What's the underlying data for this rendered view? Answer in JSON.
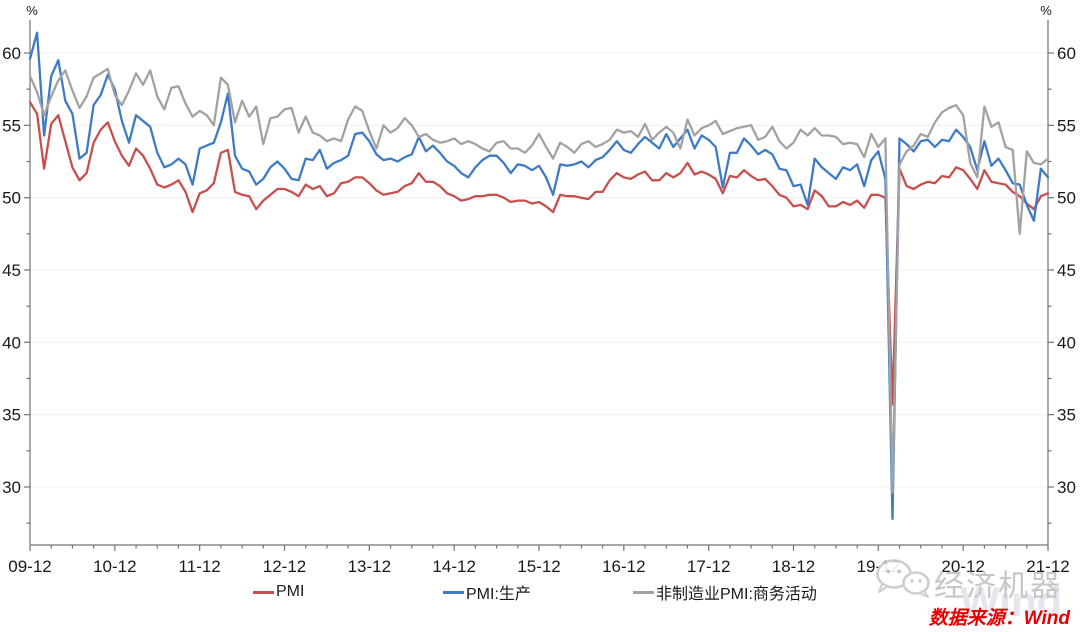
{
  "chart_data": {
    "type": "line",
    "title": "",
    "unit_left": "%",
    "unit_right": "%",
    "x_start": "2009-12",
    "x_frequency": "monthly",
    "x_tick_labels": [
      "09-12",
      "10-12",
      "11-12",
      "12-12",
      "13-12",
      "14-12",
      "15-12",
      "16-12",
      "17-12",
      "18-12",
      "19-12",
      "20-12",
      "21-12"
    ],
    "y_axis": {
      "min": 26,
      "max": 62.3,
      "major_ticks": [
        30,
        35,
        40,
        45,
        50,
        55,
        60
      ],
      "minor_step": 2.5,
      "grid": true
    },
    "legend_position": "bottom",
    "series": [
      {
        "name": "PMI",
        "color": "#C7504F",
        "values": [
          56.6,
          55.8,
          52.0,
          55.1,
          55.7,
          53.9,
          52.1,
          51.2,
          51.7,
          53.8,
          54.7,
          55.2,
          53.9,
          52.9,
          52.2,
          53.4,
          52.9,
          52.0,
          50.9,
          50.7,
          50.9,
          51.2,
          50.4,
          49.0,
          50.3,
          50.5,
          51.0,
          53.1,
          53.3,
          50.4,
          50.2,
          50.1,
          49.2,
          49.8,
          50.2,
          50.6,
          50.6,
          50.4,
          50.1,
          50.9,
          50.6,
          50.8,
          50.1,
          50.3,
          51.0,
          51.1,
          51.4,
          51.4,
          51.0,
          50.5,
          50.2,
          50.3,
          50.4,
          50.8,
          51.0,
          51.7,
          51.1,
          51.1,
          50.8,
          50.3,
          50.1,
          49.8,
          49.9,
          50.1,
          50.1,
          50.2,
          50.2,
          50.0,
          49.7,
          49.8,
          49.8,
          49.6,
          49.7,
          49.4,
          49.0,
          50.2,
          50.1,
          50.1,
          50.0,
          49.9,
          50.4,
          50.4,
          51.2,
          51.7,
          51.4,
          51.3,
          51.6,
          51.8,
          51.2,
          51.2,
          51.7,
          51.4,
          51.7,
          52.4,
          51.6,
          51.8,
          51.6,
          51.3,
          50.3,
          51.5,
          51.4,
          51.9,
          51.5,
          51.2,
          51.3,
          50.8,
          50.2,
          50.0,
          49.4,
          49.5,
          49.2,
          50.5,
          50.1,
          49.4,
          49.4,
          49.7,
          49.5,
          49.8,
          49.3,
          50.2,
          50.2,
          50.0,
          35.7,
          52.0,
          50.8,
          50.6,
          50.9,
          51.1,
          51.0,
          51.5,
          51.4,
          52.1,
          51.9,
          51.3,
          50.6,
          51.9,
          51.1,
          51.0,
          50.9,
          50.4,
          50.1,
          49.6,
          49.2,
          50.1,
          50.3
        ]
      },
      {
        "name": "PMI:生产",
        "color": "#3E7BC4",
        "values": [
          59.6,
          61.4,
          54.3,
          58.4,
          59.5,
          56.7,
          55.8,
          52.7,
          53.1,
          56.4,
          57.1,
          58.5,
          57.5,
          55.3,
          53.8,
          55.7,
          55.3,
          54.9,
          53.1,
          52.1,
          52.3,
          52.7,
          52.3,
          50.9,
          53.4,
          53.6,
          53.8,
          55.2,
          57.2,
          52.9,
          52.0,
          51.8,
          50.9,
          51.3,
          52.1,
          52.5,
          52.0,
          51.3,
          51.2,
          52.7,
          52.6,
          53.3,
          52.0,
          52.4,
          52.6,
          52.9,
          54.4,
          54.5,
          53.9,
          53.0,
          52.6,
          52.7,
          52.5,
          52.8,
          53.0,
          54.2,
          53.2,
          53.6,
          53.1,
          52.5,
          52.2,
          51.7,
          51.4,
          52.1,
          52.6,
          52.9,
          52.9,
          52.4,
          51.7,
          52.3,
          52.2,
          51.9,
          52.2,
          51.4,
          50.2,
          52.3,
          52.2,
          52.3,
          52.5,
          52.1,
          52.6,
          52.8,
          53.3,
          53.9,
          53.3,
          53.1,
          53.7,
          54.2,
          53.8,
          53.4,
          54.4,
          53.5,
          54.1,
          54.7,
          53.4,
          54.3,
          54.0,
          53.5,
          50.7,
          53.1,
          53.1,
          54.1,
          53.6,
          53.0,
          53.3,
          53.0,
          52.0,
          51.9,
          50.8,
          50.9,
          49.5,
          52.7,
          52.1,
          51.7,
          51.3,
          52.1,
          51.9,
          52.3,
          50.8,
          52.6,
          53.2,
          51.3,
          27.8,
          54.1,
          53.7,
          53.2,
          53.9,
          54.0,
          53.5,
          54.0,
          53.9,
          54.7,
          54.2,
          53.5,
          51.9,
          53.9,
          52.2,
          52.7,
          51.9,
          51.0,
          50.9,
          49.5,
          48.4,
          52.0,
          51.4
        ]
      },
      {
        "name": "非制造业PMI:商务活动",
        "color": "#A2A2A2",
        "values": [
          58.4,
          57.3,
          55.7,
          57.0,
          58.1,
          58.8,
          57.4,
          56.2,
          57.0,
          58.3,
          58.6,
          58.9,
          57.1,
          56.4,
          57.4,
          58.6,
          57.8,
          58.8,
          57.0,
          56.1,
          57.6,
          57.7,
          56.5,
          55.6,
          56.0,
          55.7,
          55.0,
          58.3,
          57.8,
          55.2,
          56.7,
          55.6,
          56.3,
          53.7,
          55.5,
          55.6,
          56.1,
          56.2,
          54.5,
          55.6,
          54.5,
          54.3,
          53.9,
          54.1,
          53.9,
          55.4,
          56.3,
          56.0,
          54.6,
          53.4,
          55.0,
          54.5,
          54.8,
          55.5,
          55.0,
          54.2,
          54.4,
          54.0,
          53.8,
          53.9,
          54.1,
          53.7,
          53.9,
          53.7,
          53.4,
          53.2,
          53.8,
          53.9,
          53.4,
          53.4,
          53.1,
          53.6,
          54.4,
          53.5,
          52.7,
          53.8,
          53.5,
          53.1,
          53.7,
          53.9,
          53.5,
          53.7,
          54.0,
          54.7,
          54.5,
          54.6,
          54.2,
          55.1,
          54.0,
          54.5,
          54.9,
          54.5,
          53.4,
          55.4,
          54.3,
          54.8,
          55.0,
          55.3,
          54.4,
          54.6,
          54.8,
          54.9,
          55.0,
          54.0,
          54.2,
          54.9,
          53.9,
          53.4,
          53.8,
          54.7,
          54.3,
          54.8,
          54.3,
          54.3,
          54.2,
          53.7,
          53.8,
          53.7,
          52.8,
          54.4,
          53.5,
          54.1,
          29.6,
          52.3,
          53.2,
          53.6,
          54.4,
          54.2,
          55.2,
          55.9,
          56.2,
          56.4,
          55.7,
          52.4,
          51.4,
          56.3,
          54.9,
          55.2,
          53.5,
          53.3,
          47.5,
          53.2,
          52.4,
          52.3,
          52.7
        ]
      }
    ]
  },
  "footer": {
    "watermark_text": "经济机器",
    "wind_ghost": "Wind",
    "source_label": "数据来源：Wind"
  }
}
